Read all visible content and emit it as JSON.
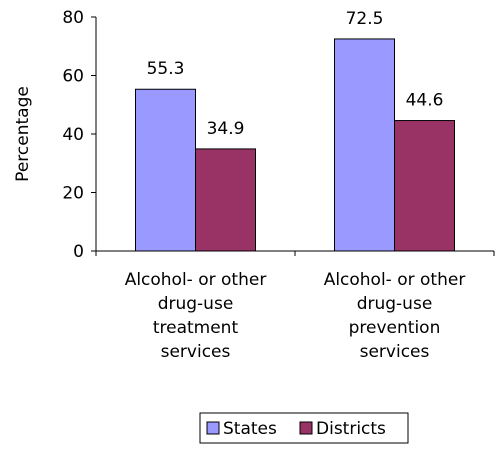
{
  "chart_data": {
    "type": "bar",
    "title": "",
    "xlabel": "",
    "ylabel": "Percentage",
    "ylim": [
      0,
      80
    ],
    "yticks": [
      0,
      20,
      40,
      60,
      80
    ],
    "categories": [
      [
        "Alcohol- or other",
        "drug-use",
        "treatment",
        "services"
      ],
      [
        "Alcohol- or other",
        "drug-use",
        "prevention",
        "services"
      ]
    ],
    "series": [
      {
        "name": "States",
        "values": [
          55.3,
          72.5
        ],
        "labels": [
          "55.3",
          "72.5"
        ],
        "color": "#9999FF"
      },
      {
        "name": "Districts",
        "values": [
          34.9,
          44.6
        ],
        "labels": [
          "34.9",
          "44.6"
        ],
        "color": "#993366"
      }
    ],
    "grid": false,
    "legend_position": "bottom"
  }
}
